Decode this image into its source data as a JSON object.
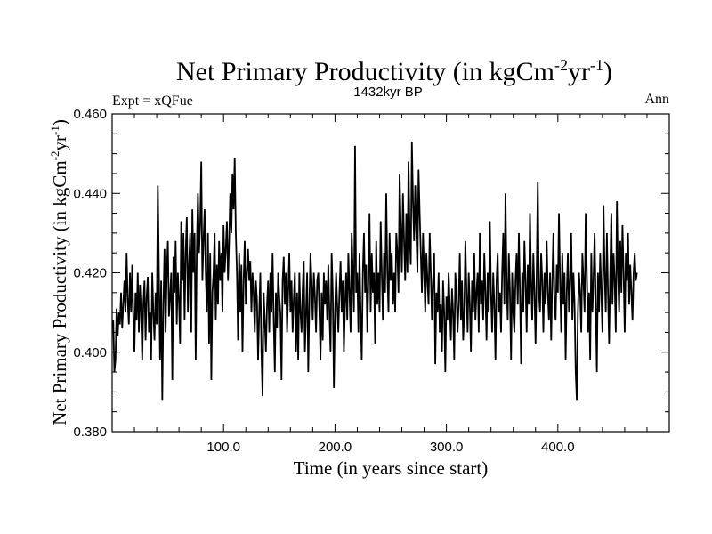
{
  "chart_data": {
    "type": "line",
    "title": {
      "prefix": "Net Primary Productivity (in kgCm",
      "exp1": "-2",
      "mid": "yr",
      "exp2": "-1",
      "suffix": ")"
    },
    "subtitle": "1432kyr BP",
    "annotation_left": "Expt = xQFue",
    "annotation_right": "Ann",
    "xlabel": "Time (in years since start)",
    "ylabel": {
      "prefix": "Net Primary Productivity (in kgCm",
      "exp1": "-2",
      "mid": "yr",
      "exp2": "-1",
      "suffix": ")"
    },
    "xlim": [
      0,
      500
    ],
    "ylim": [
      0.38,
      0.46
    ],
    "xticks": [
      {
        "value": 100,
        "label": "100.0"
      },
      {
        "value": 200,
        "label": "200.0"
      },
      {
        "value": 300,
        "label": "300.0"
      },
      {
        "value": 400,
        "label": "400.0"
      }
    ],
    "yticks": [
      {
        "value": 0.38,
        "label": "0.380"
      },
      {
        "value": 0.4,
        "label": "0.400"
      },
      {
        "value": 0.42,
        "label": "0.420"
      },
      {
        "value": 0.44,
        "label": "0.440"
      },
      {
        "value": 0.46,
        "label": "0.460"
      }
    ],
    "series": [
      {
        "name": "Net Primary Productivity",
        "x_start": 1,
        "x_step": 1,
        "values": [
          0.408,
          0.395,
          0.398,
          0.411,
          0.404,
          0.41,
          0.407,
          0.415,
          0.406,
          0.412,
          0.418,
          0.41,
          0.425,
          0.413,
          0.407,
          0.42,
          0.41,
          0.422,
          0.409,
          0.4,
          0.415,
          0.408,
          0.42,
          0.405,
          0.417,
          0.41,
          0.398,
          0.412,
          0.418,
          0.403,
          0.414,
          0.419,
          0.405,
          0.41,
          0.398,
          0.42,
          0.41,
          0.403,
          0.415,
          0.407,
          0.442,
          0.42,
          0.398,
          0.418,
          0.388,
          0.412,
          0.426,
          0.405,
          0.42,
          0.428,
          0.409,
          0.414,
          0.42,
          0.393,
          0.424,
          0.415,
          0.428,
          0.407,
          0.42,
          0.413,
          0.402,
          0.433,
          0.418,
          0.43,
          0.408,
          0.425,
          0.434,
          0.41,
          0.422,
          0.43,
          0.405,
          0.436,
          0.42,
          0.43,
          0.398,
          0.426,
          0.44,
          0.425,
          0.432,
          0.448,
          0.418,
          0.428,
          0.436,
          0.42,
          0.41,
          0.43,
          0.402,
          0.425,
          0.393,
          0.415,
          0.42,
          0.43,
          0.408,
          0.422,
          0.412,
          0.428,
          0.418,
          0.425,
          0.41,
          0.432,
          0.42,
          0.426,
          0.433,
          0.418,
          0.428,
          0.44,
          0.43,
          0.445,
          0.436,
          0.449,
          0.43,
          0.42,
          0.403,
          0.425,
          0.41,
          0.422,
          0.4,
          0.418,
          0.428,
          0.412,
          0.42,
          0.426,
          0.418,
          0.423,
          0.41,
          0.42,
          0.415,
          0.405,
          0.418,
          0.413,
          0.398,
          0.41,
          0.42,
          0.4,
          0.389,
          0.415,
          0.408,
          0.4,
          0.412,
          0.418,
          0.405,
          0.42,
          0.41,
          0.425,
          0.408,
          0.395,
          0.415,
          0.406,
          0.42,
          0.414,
          0.41,
          0.393,
          0.418,
          0.424,
          0.412,
          0.42,
          0.405,
          0.415,
          0.425,
          0.41,
          0.418,
          0.405,
          0.413,
          0.42,
          0.4,
          0.415,
          0.398,
          0.42,
          0.41,
          0.405,
          0.416,
          0.423,
          0.4,
          0.41,
          0.42,
          0.395,
          0.412,
          0.425,
          0.418,
          0.408,
          0.42,
          0.414,
          0.405,
          0.418,
          0.42,
          0.41,
          0.398,
          0.415,
          0.403,
          0.42,
          0.412,
          0.418,
          0.408,
          0.422,
          0.41,
          0.4,
          0.425,
          0.415,
          0.391,
          0.41,
          0.42,
          0.412,
          0.405,
          0.415,
          0.423,
          0.41,
          0.418,
          0.4,
          0.412,
          0.42,
          0.408,
          0.425,
          0.415,
          0.405,
          0.43,
          0.42,
          0.41,
          0.452,
          0.415,
          0.42,
          0.405,
          0.425,
          0.41,
          0.398,
          0.42,
          0.43,
          0.415,
          0.422,
          0.405,
          0.418,
          0.435,
          0.41,
          0.425,
          0.415,
          0.42,
          0.402,
          0.428,
          0.412,
          0.42,
          0.41,
          0.433,
          0.42,
          0.408,
          0.425,
          0.415,
          0.44,
          0.42,
          0.41,
          0.43,
          0.418,
          0.425,
          0.412,
          0.42,
          0.41,
          0.43,
          0.425,
          0.415,
          0.445,
          0.432,
          0.42,
          0.44,
          0.428,
          0.418,
          0.435,
          0.42,
          0.448,
          0.43,
          0.422,
          0.453,
          0.438,
          0.428,
          0.442,
          0.43,
          0.42,
          0.446,
          0.435,
          0.425,
          0.415,
          0.43,
          0.42,
          0.41,
          0.425,
          0.418,
          0.412,
          0.43,
          0.42,
          0.408,
          0.418,
          0.425,
          0.397,
          0.415,
          0.41,
          0.42,
          0.405,
          0.412,
          0.4,
          0.418,
          0.41,
          0.395,
          0.414,
          0.408,
          0.42,
          0.412,
          0.403,
          0.416,
          0.41,
          0.398,
          0.42,
          0.415,
          0.405,
          0.412,
          0.425,
          0.408,
          0.418,
          0.403,
          0.41,
          0.428,
          0.415,
          0.405,
          0.42,
          0.412,
          0.4,
          0.418,
          0.41,
          0.425,
          0.408,
          0.415,
          0.42,
          0.405,
          0.43,
          0.412,
          0.418,
          0.408,
          0.425,
          0.415,
          0.403,
          0.42,
          0.41,
          0.433,
          0.415,
          0.405,
          0.42,
          0.412,
          0.398,
          0.418,
          0.425,
          0.41,
          0.415,
          0.405,
          0.42,
          0.43,
          0.412,
          0.44,
          0.418,
          0.408,
          0.425,
          0.415,
          0.398,
          0.42,
          0.41,
          0.405,
          0.418,
          0.425,
          0.412,
          0.43,
          0.415,
          0.397,
          0.42,
          0.41,
          0.428,
          0.418,
          0.405,
          0.422,
          0.412,
          0.435,
          0.418,
          0.408,
          0.425,
          0.415,
          0.402,
          0.42,
          0.443,
          0.415,
          0.41,
          0.425,
          0.418,
          0.405,
          0.42,
          0.412,
          0.428,
          0.415,
          0.408,
          0.42,
          0.403,
          0.418,
          0.43,
          0.412,
          0.408,
          0.422,
          0.415,
          0.435,
          0.418,
          0.405,
          0.425,
          0.412,
          0.42,
          0.398,
          0.415,
          0.425,
          0.41,
          0.418,
          0.43,
          0.408,
          0.42,
          0.412,
          0.395,
          0.388,
          0.41,
          0.42,
          0.415,
          0.405,
          0.425,
          0.418,
          0.41,
          0.435,
          0.42,
          0.405,
          0.415,
          0.398,
          0.425,
          0.41,
          0.418,
          0.43,
          0.412,
          0.395,
          0.42,
          0.41,
          0.425,
          0.415,
          0.405,
          0.437,
          0.42,
          0.41,
          0.43,
          0.415,
          0.402,
          0.42,
          0.435,
          0.412,
          0.425,
          0.418,
          0.405,
          0.438,
          0.42,
          0.41,
          0.428,
          0.415,
          0.432,
          0.42,
          0.405,
          0.425,
          0.418,
          0.43,
          0.412,
          0.422,
          0.415,
          0.408,
          0.42,
          0.425,
          0.418,
          0.42
        ]
      }
    ]
  }
}
